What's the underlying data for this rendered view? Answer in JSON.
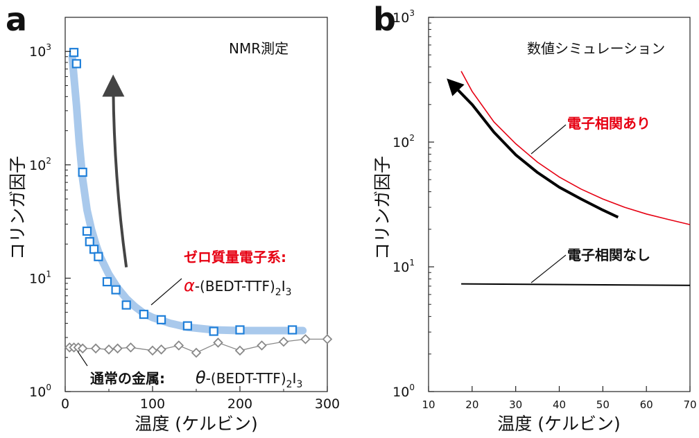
{
  "chart_data": [
    {
      "panel": "a",
      "type": "scatter",
      "annotation": "NMR測定",
      "xlabel": "温度 (ケルビン)",
      "ylabel": "コリンガ因子",
      "xlim": [
        0,
        300
      ],
      "ylim": [
        1,
        2000
      ],
      "yscale": "log",
      "xticks": [
        "0",
        "100",
        "200",
        "300"
      ],
      "yticks": [
        {
          "base": "10",
          "exp": "0"
        },
        {
          "base": "10",
          "exp": "1"
        },
        {
          "base": "10",
          "exp": "2"
        },
        {
          "base": "10",
          "exp": "3"
        }
      ],
      "series": [
        {
          "name": "ゼロ質量電子系:",
          "formula": {
            "symbol": "α",
            "pre": "-(BEDT-TTF)",
            "sub": "2",
            "post": "I",
            "sub2": "3"
          },
          "color": "#1f7fd9",
          "marker": "square",
          "x": [
            10,
            13,
            20,
            25,
            28,
            33,
            38,
            48,
            58,
            70,
            90,
            110,
            140,
            170,
            200,
            260
          ],
          "y": [
            980,
            780,
            86,
            26,
            21,
            18,
            15.5,
            9.3,
            7.9,
            5.8,
            4.8,
            4.3,
            3.8,
            3.4,
            3.5,
            3.5
          ]
        },
        {
          "name": "通常の金属:",
          "formula": {
            "symbol": "θ",
            "pre": "-(BEDT-TTF)",
            "sub": "2",
            "post": "I",
            "sub2": "3"
          },
          "color": "#888888",
          "marker": "diamond",
          "x": [
            5,
            10,
            15,
            20,
            35,
            50,
            60,
            75,
            100,
            110,
            130,
            150,
            175,
            200,
            225,
            250,
            275,
            300
          ],
          "y": [
            2.45,
            2.45,
            2.45,
            2.4,
            2.4,
            2.35,
            2.4,
            2.45,
            2.3,
            2.35,
            2.55,
            2.2,
            2.7,
            2.3,
            2.55,
            2.75,
            2.9,
            2.9
          ]
        }
      ],
      "fit_curve": {
        "color": "#a9c9ec",
        "x": [
          8,
          10,
          13,
          16,
          20,
          25,
          30,
          35,
          40,
          50,
          60,
          70,
          80,
          90,
          100,
          120,
          140,
          170,
          200,
          230,
          260,
          272
        ],
        "y": [
          900,
          600,
          330,
          160,
          75,
          40,
          27,
          20,
          15.5,
          10.8,
          8.2,
          6.6,
          5.6,
          4.9,
          4.5,
          4.0,
          3.7,
          3.5,
          3.45,
          3.45,
          3.45,
          3.45
        ]
      },
      "arrow": {
        "from": [
          70,
          12.5
        ],
        "to": [
          55,
          500
        ],
        "color": "#444444"
      }
    },
    {
      "panel": "b",
      "type": "line",
      "annotation": "数値シミュレーション",
      "xlabel": "温度 (ケルビン)",
      "ylabel": "コリンガ因子",
      "xlim": [
        10,
        70
      ],
      "ylim": [
        1,
        1000
      ],
      "yscale": "log",
      "xticks": [
        "10",
        "20",
        "30",
        "40",
        "50",
        "60",
        "70"
      ],
      "yticks": [
        {
          "base": "10",
          "exp": "0"
        },
        {
          "base": "10",
          "exp": "1"
        },
        {
          "base": "10",
          "exp": "2"
        },
        {
          "base": "10",
          "exp": "3"
        }
      ],
      "series": [
        {
          "name": "電子相関あり",
          "color": "#e60012",
          "x": [
            17.5,
            20,
            25,
            30,
            35,
            40,
            45,
            50,
            55,
            60,
            65,
            70
          ],
          "y": [
            370,
            255,
            145,
            97,
            69,
            52.5,
            42,
            35,
            30,
            26.5,
            24,
            21.8
          ]
        },
        {
          "name": "電子相関なし",
          "color": "#000000",
          "x": [
            17.5,
            70
          ],
          "y": [
            7.3,
            7.1
          ]
        }
      ],
      "arrow": {
        "color": "#000000",
        "x": [
          53.5,
          50,
          45,
          40,
          35,
          30,
          25,
          20,
          15.5
        ],
        "y": [
          25,
          28.5,
          35,
          43.5,
          57,
          79,
          120,
          200,
          290
        ]
      }
    }
  ]
}
